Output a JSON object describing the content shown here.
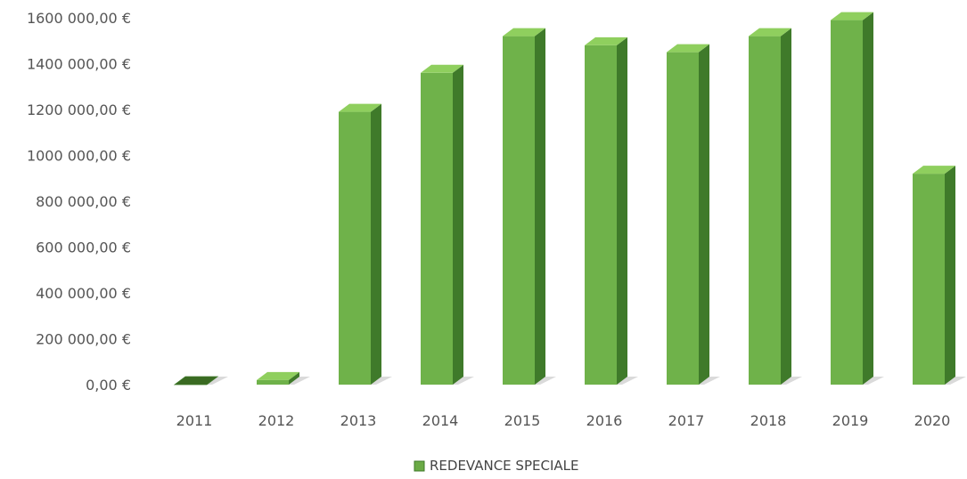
{
  "chart_data": {
    "type": "bar",
    "style": "3d-column",
    "categories": [
      "2011",
      "2012",
      "2013",
      "2014",
      "2015",
      "2016",
      "2017",
      "2018",
      "2019",
      "2020"
    ],
    "series": [
      {
        "name": "REDEVANCE SPECIALE",
        "values": [
          0,
          20000,
          1190000,
          1360000,
          1520000,
          1480000,
          1450000,
          1520000,
          1590000,
          920000
        ]
      }
    ],
    "yticks": [
      "0,00 €",
      "200 000,00 €",
      "400 000,00 €",
      "600 000,00 €",
      "800 000,00 €",
      "1000 000,00 €",
      "1200 000,00 €",
      "1400 000,00 €",
      "1600 000,00 €"
    ],
    "ylim": [
      0,
      1600000
    ],
    "grid": false,
    "legend_position": "bottom-center",
    "colors": {
      "bar_front": "#6fb24a",
      "bar_side": "#3f7a2a",
      "bar_top": "#8fcf5e",
      "bar_dark": "#3a6a22",
      "shadow": "#dadada",
      "legend_marker": "#6aaa45"
    }
  }
}
